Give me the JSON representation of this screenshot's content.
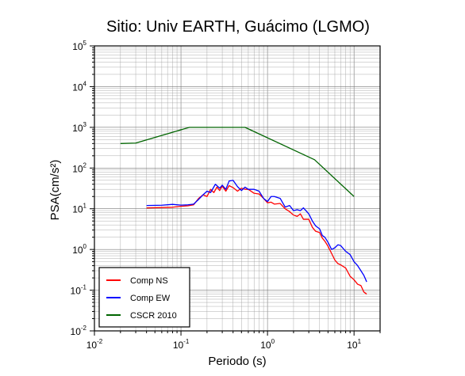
{
  "chart_data": {
    "type": "line",
    "title": "Sitio: Univ EARTH, Guácimo (LGMO)",
    "xlabel": "Periodo (s)",
    "ylabel": "PSA(cm/s²)",
    "xscale": "log",
    "yscale": "log",
    "xlim": [
      0.01,
      20
    ],
    "ylim": [
      0.01,
      100000
    ],
    "x_ticks": [
      {
        "base": "10",
        "exp": "-2",
        "value": 0.01
      },
      {
        "base": "10",
        "exp": "-1",
        "value": 0.1
      },
      {
        "base": "10",
        "exp": "0",
        "value": 1
      },
      {
        "base": "10",
        "exp": "1",
        "value": 10
      }
    ],
    "y_ticks": [
      {
        "base": "10",
        "exp": "-2",
        "value": 0.01
      },
      {
        "base": "10",
        "exp": "-1",
        "value": 0.1
      },
      {
        "base": "10",
        "exp": "0",
        "value": 1
      },
      {
        "base": "10",
        "exp": "1",
        "value": 10
      },
      {
        "base": "10",
        "exp": "2",
        "value": 100
      },
      {
        "base": "10",
        "exp": "3",
        "value": 1000
      },
      {
        "base": "10",
        "exp": "4",
        "value": 10000
      },
      {
        "base": "10",
        "exp": "5",
        "value": 100000
      }
    ],
    "grid": true,
    "legend_position": "bottom-left",
    "series": [
      {
        "name": "Comp NS",
        "color": "#ff0000",
        "points": [
          [
            0.04,
            10.5
          ],
          [
            0.06,
            10.7
          ],
          [
            0.08,
            10.9
          ],
          [
            0.1,
            11.5
          ],
          [
            0.12,
            11.8
          ],
          [
            0.14,
            12.5
          ],
          [
            0.16,
            18
          ],
          [
            0.18,
            22
          ],
          [
            0.2,
            20
          ],
          [
            0.22,
            30
          ],
          [
            0.24,
            25
          ],
          [
            0.26,
            34
          ],
          [
            0.28,
            28
          ],
          [
            0.3,
            36
          ],
          [
            0.33,
            27
          ],
          [
            0.36,
            37
          ],
          [
            0.4,
            33
          ],
          [
            0.45,
            27
          ],
          [
            0.5,
            32
          ],
          [
            0.55,
            30
          ],
          [
            0.6,
            30
          ],
          [
            0.7,
            24
          ],
          [
            0.8,
            23
          ],
          [
            0.9,
            18
          ],
          [
            1.0,
            14
          ],
          [
            1.1,
            14.5
          ],
          [
            1.2,
            13
          ],
          [
            1.4,
            13.5
          ],
          [
            1.6,
            10
          ],
          [
            1.8,
            8.5
          ],
          [
            2.0,
            7
          ],
          [
            2.2,
            6.5
          ],
          [
            2.4,
            7.5
          ],
          [
            2.6,
            5.5
          ],
          [
            3.0,
            5.5
          ],
          [
            3.3,
            3.5
          ],
          [
            3.6,
            2.8
          ],
          [
            4.0,
            2.6
          ],
          [
            4.3,
            1.9
          ],
          [
            4.6,
            1.6
          ],
          [
            5.0,
            1.2
          ],
          [
            5.5,
            0.8
          ],
          [
            6.0,
            0.55
          ],
          [
            6.5,
            0.45
          ],
          [
            7.0,
            0.42
          ],
          [
            8.0,
            0.35
          ],
          [
            9.0,
            0.22
          ],
          [
            10.0,
            0.18
          ],
          [
            11.0,
            0.14
          ],
          [
            12.0,
            0.13
          ],
          [
            13.0,
            0.09
          ],
          [
            14.0,
            0.08
          ]
        ]
      },
      {
        "name": "Comp EW",
        "color": "#0000ff",
        "points": [
          [
            0.04,
            12
          ],
          [
            0.06,
            12.2
          ],
          [
            0.08,
            12.8
          ],
          [
            0.1,
            12.3
          ],
          [
            0.12,
            12.5
          ],
          [
            0.14,
            13
          ],
          [
            0.16,
            17
          ],
          [
            0.18,
            22
          ],
          [
            0.2,
            27
          ],
          [
            0.22,
            25
          ],
          [
            0.25,
            40
          ],
          [
            0.28,
            32
          ],
          [
            0.3,
            38
          ],
          [
            0.33,
            30
          ],
          [
            0.36,
            48
          ],
          [
            0.4,
            50
          ],
          [
            0.45,
            35
          ],
          [
            0.5,
            28
          ],
          [
            0.55,
            34
          ],
          [
            0.6,
            30
          ],
          [
            0.7,
            30
          ],
          [
            0.8,
            27
          ],
          [
            0.9,
            18
          ],
          [
            1.0,
            15
          ],
          [
            1.1,
            20
          ],
          [
            1.2,
            20
          ],
          [
            1.4,
            18
          ],
          [
            1.6,
            11
          ],
          [
            1.8,
            12
          ],
          [
            2.0,
            9
          ],
          [
            2.2,
            9.5
          ],
          [
            2.4,
            9
          ],
          [
            2.6,
            10.5
          ],
          [
            3.0,
            7.5
          ],
          [
            3.3,
            5
          ],
          [
            3.6,
            3.8
          ],
          [
            4.0,
            3.2
          ],
          [
            4.3,
            2.2
          ],
          [
            4.6,
            2.0
          ],
          [
            5.0,
            1.5
          ],
          [
            5.5,
            1.0
          ],
          [
            6.0,
            1.1
          ],
          [
            6.5,
            1.3
          ],
          [
            7.0,
            1.25
          ],
          [
            8.0,
            0.9
          ],
          [
            9.0,
            0.75
          ],
          [
            10.0,
            0.5
          ],
          [
            11.0,
            0.4
          ],
          [
            12.0,
            0.3
          ],
          [
            13.0,
            0.23
          ],
          [
            14.0,
            0.16
          ]
        ]
      },
      {
        "name": "CSCR 2010",
        "color": "#006400",
        "points": [
          [
            0.02,
            400
          ],
          [
            0.03,
            410
          ],
          [
            0.125,
            1000
          ],
          [
            0.55,
            1000
          ],
          [
            3.5,
            160
          ],
          [
            10.0,
            20
          ]
        ]
      }
    ]
  }
}
